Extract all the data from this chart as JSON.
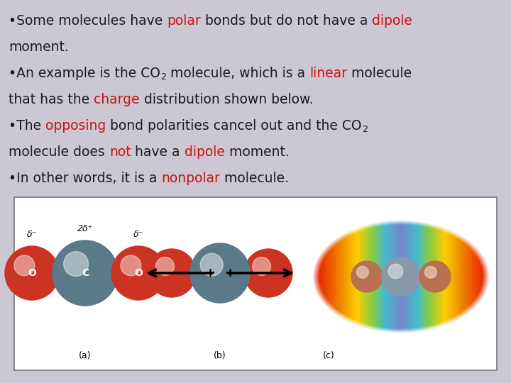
{
  "bg_color": "#cbc8d4",
  "box_bg": "#ffffff",
  "text_color": "#1a1a1a",
  "red_color": "#cc1111",
  "fontsize": 13.5,
  "lines": [
    [
      {
        "t": "•Some molecules have ",
        "c": "#1a1a1a"
      },
      {
        "t": "polar",
        "c": "#cc1111"
      },
      {
        "t": " bonds but do not have a ",
        "c": "#1a1a1a"
      },
      {
        "t": "dipole",
        "c": "#cc1111"
      }
    ],
    [
      {
        "t": "moment.",
        "c": "#1a1a1a"
      }
    ],
    [
      {
        "t": "•An example is the CO",
        "c": "#1a1a1a"
      },
      {
        "t": "2",
        "c": "#1a1a1a",
        "sub": true
      },
      {
        "t": " molecule, which is a ",
        "c": "#1a1a1a"
      },
      {
        "t": "linear",
        "c": "#cc1111"
      },
      {
        "t": " molecule",
        "c": "#1a1a1a"
      }
    ],
    [
      {
        "t": "that has the ",
        "c": "#1a1a1a"
      },
      {
        "t": "charge",
        "c": "#cc1111"
      },
      {
        "t": " distribution shown below.",
        "c": "#1a1a1a"
      }
    ],
    [
      {
        "t": "•The ",
        "c": "#1a1a1a"
      },
      {
        "t": "opposing",
        "c": "#cc1111"
      },
      {
        "t": " bond polarities cancel out and the CO",
        "c": "#1a1a1a"
      },
      {
        "t": "2",
        "c": "#1a1a1a",
        "sub": true
      }
    ],
    [
      {
        "t": "molecule does ",
        "c": "#1a1a1a"
      },
      {
        "t": "not",
        "c": "#cc1111"
      },
      {
        "t": " have a ",
        "c": "#1a1a1a"
      },
      {
        "t": "dipole",
        "c": "#cc1111"
      },
      {
        "t": " moment.",
        "c": "#1a1a1a"
      }
    ],
    [
      {
        "t": "•In other words, it is a ",
        "c": "#1a1a1a"
      },
      {
        "t": "nonpolar",
        "c": "#cc1111"
      },
      {
        "t": " molecule.",
        "c": "#1a1a1a"
      }
    ]
  ],
  "O_color": "#cc3322",
  "C_color": "#5a7a8a",
  "O_c_color": "#b87050",
  "C_c_color": "#8899aa",
  "esp_colors": [
    [
      0.0,
      "#dd1100"
    ],
    [
      0.12,
      "#ee6600"
    ],
    [
      0.25,
      "#ffcc00"
    ],
    [
      0.38,
      "#88cc44"
    ],
    [
      0.48,
      "#44bbcc"
    ],
    [
      0.5,
      "#7788cc"
    ],
    [
      0.52,
      "#44bbcc"
    ],
    [
      0.62,
      "#88cc44"
    ],
    [
      0.75,
      "#ffcc00"
    ],
    [
      0.88,
      "#ee6600"
    ],
    [
      1.0,
      "#dd1100"
    ]
  ]
}
